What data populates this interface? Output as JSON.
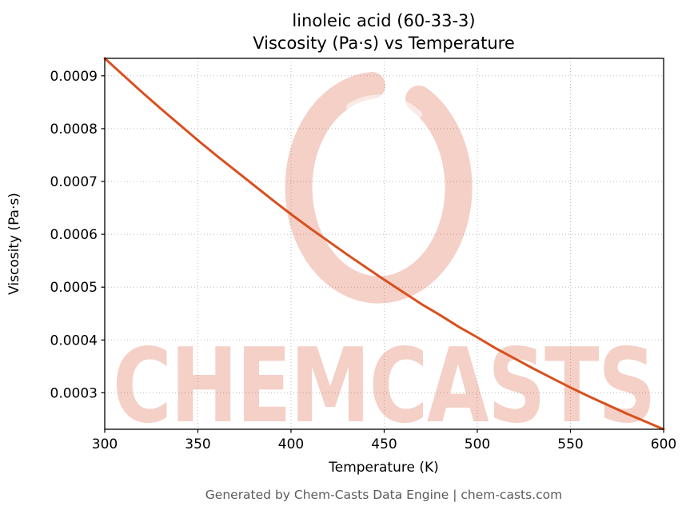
{
  "figure": {
    "title_line1": "linoleic acid (60-33-3)",
    "title_line2": "Viscosity (Pa·s) vs Temperature",
    "footer": "Generated by Chem-Casts Data Engine | chem-casts.com",
    "watermark_text": "CHEMCASTS"
  },
  "colors": {
    "line": "#d8501e",
    "watermark": "rgba(214,72,38,0.26)",
    "grid": "#bbbbbb",
    "axis": "#000000",
    "footer": "#5a5a5a"
  },
  "chart_data": {
    "type": "line",
    "title": "linoleic acid (60-33-3) — Viscosity (Pa·s) vs Temperature",
    "xlabel": "Temperature (K)",
    "ylabel": "Viscosity (Pa·s)",
    "xlim": [
      300,
      600
    ],
    "ylim": [
      0.000231,
      0.000933
    ],
    "x_ticks": [
      300,
      350,
      400,
      450,
      500,
      550,
      600
    ],
    "y_ticks": [
      0.0003,
      0.0004,
      0.0005,
      0.0006,
      0.0007,
      0.0008,
      0.0009
    ],
    "grid": true,
    "legend": false,
    "series": [
      {
        "name": "viscosity",
        "x": [
          300,
          310,
          320,
          330,
          340,
          350,
          360,
          370,
          380,
          390,
          400,
          410,
          420,
          430,
          440,
          450,
          460,
          470,
          480,
          490,
          500,
          510,
          520,
          530,
          540,
          550,
          560,
          570,
          580,
          590,
          600
        ],
        "y": [
          0.000933,
          0.000901,
          0.000869,
          0.000838,
          0.000808,
          0.000778,
          0.000749,
          0.000721,
          0.000693,
          0.000665,
          0.000638,
          0.000612,
          0.000587,
          0.000562,
          0.000538,
          0.000514,
          0.000491,
          0.000468,
          0.000447,
          0.000425,
          0.000405,
          0.000384,
          0.000365,
          0.000346,
          0.000328,
          0.00031,
          0.000293,
          0.000277,
          0.000261,
          0.000246,
          0.000231
        ]
      }
    ]
  }
}
